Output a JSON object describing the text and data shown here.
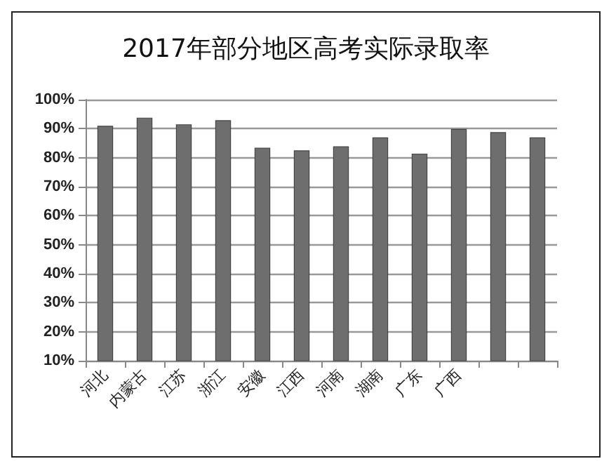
{
  "chart_data": {
    "type": "bar",
    "title": "2017年部分地区高考实际录取率",
    "categories": [
      "河北",
      "内蒙古",
      "江苏",
      "浙江",
      "安徽",
      "江西",
      "河南",
      "湖南",
      "广东",
      "广西",
      null,
      null
    ],
    "values": [
      91.0,
      93.8,
      91.5,
      92.9,
      83.4,
      82.5,
      83.9,
      87.0,
      81.4,
      89.9,
      88.8,
      87.0
    ],
    "color": "#6e6e6e",
    "ylim": [
      10,
      100
    ],
    "yticks": [
      {
        "value": 10,
        "label": "10%"
      },
      {
        "value": 20,
        "label": "20%"
      },
      {
        "value": 30,
        "label": "30%"
      },
      {
        "value": 40,
        "label": "40%"
      },
      {
        "value": 50,
        "label": "50%"
      },
      {
        "value": 60,
        "label": "60%"
      },
      {
        "value": 70,
        "label": "70%"
      },
      {
        "value": 80,
        "label": "80%"
      },
      {
        "value": 90,
        "label": "90%"
      },
      {
        "value": 100,
        "label": "100%"
      }
    ],
    "grid": "y"
  }
}
